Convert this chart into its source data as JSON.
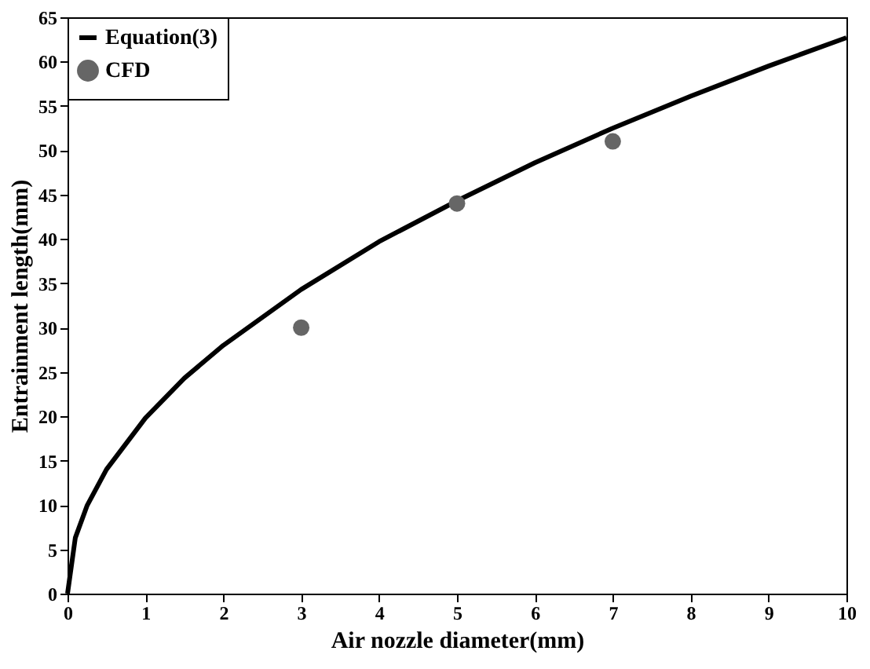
{
  "chart_data": {
    "type": "line",
    "xlabel": "Air nozzle diameter(mm)",
    "ylabel": "Entrainment length(mm)",
    "xlim": [
      0,
      10
    ],
    "ylim": [
      0,
      65
    ],
    "xticks": [
      0,
      1,
      2,
      3,
      4,
      5,
      6,
      7,
      8,
      9,
      10
    ],
    "yticks": [
      0,
      5,
      10,
      15,
      20,
      25,
      30,
      35,
      40,
      45,
      50,
      55,
      60,
      65
    ],
    "grid": false,
    "legend": "top left",
    "series": [
      {
        "name": "Equation(3)",
        "type": "line",
        "color": "#000000",
        "marker": "none",
        "line_style": "solid",
        "x": [
          0,
          0.1,
          0.25,
          0.5,
          1,
          1.5,
          2,
          3,
          4,
          5,
          6,
          7,
          8,
          9,
          10
        ],
        "values": [
          0,
          6.3,
          9.9,
          14,
          19.8,
          24.3,
          28,
          34.3,
          39.7,
          44.3,
          48.6,
          52.5,
          56.1,
          59.5,
          62.7
        ]
      },
      {
        "name": "CFD",
        "type": "scatter",
        "color": "#666666",
        "marker": "circle",
        "x": [
          3,
          5,
          7
        ],
        "values": [
          30,
          44,
          51
        ]
      }
    ]
  }
}
